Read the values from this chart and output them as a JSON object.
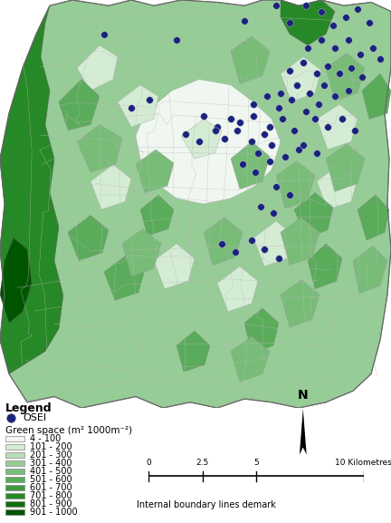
{
  "background_color": "#ffffff",
  "legend_label": "Legend",
  "legend_title_osei": "OSEI",
  "legend_title_green": "Green space (m² 1000m⁻²)",
  "green_space_ranges": [
    "4 - 100",
    "101 - 200",
    "201 - 300",
    "301 - 400",
    "401 - 500",
    "501 - 600",
    "601 - 700",
    "701 - 800",
    "801 - 900",
    "901 - 1000"
  ],
  "green_space_colors": [
    "#f0f7f0",
    "#d4ecd4",
    "#b8ddb8",
    "#96cc96",
    "#78bc78",
    "#5aab5a",
    "#3d9a3d",
    "#268826",
    "#0f700f",
    "#005500"
  ],
  "osei_color": "#1a237e",
  "scalebar_values": [
    "0",
    "2.5",
    "5",
    "10 Kilometres"
  ],
  "north_text": "N",
  "internal_boundary_text": "Internal boundary lines demark",
  "figsize": [
    4.32,
    5.77
  ],
  "dpi": 100
}
